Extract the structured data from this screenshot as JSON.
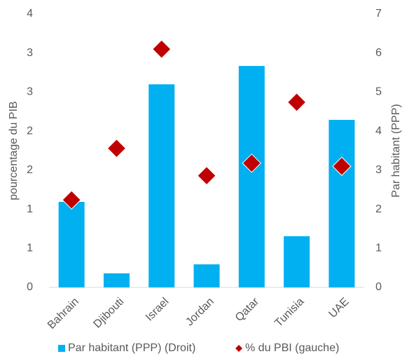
{
  "chart_data": {
    "type": "bar-scatter",
    "categories": [
      "Bahrain",
      "Djibouti",
      "Israel",
      "Jordan",
      "Qatar",
      "Tunisia",
      "UAE"
    ],
    "series": [
      {
        "name": "Par habitant (PPP) (Droit)",
        "type": "bar",
        "axis": "y2",
        "color": "#00b0f0",
        "values": [
          2.19,
          0.36,
          5.2,
          0.59,
          5.67,
          1.31,
          4.29
        ]
      },
      {
        "name": "% du PBI (gauche)",
        "type": "scatter",
        "axis": "y",
        "color": "#c00000",
        "values": [
          1.12,
          1.78,
          3.05,
          1.43,
          1.59,
          2.37,
          1.55
        ]
      }
    ],
    "ylabel": "pourcentage du PIB",
    "y2label": "Par habitant (PPP)",
    "ylim": [
      0,
      3.5
    ],
    "yticks": [
      0,
      {
        "value": 0.5,
        "label": "1"
      },
      1,
      {
        "value": 1.5,
        "label": "2"
      },
      2,
      {
        "value": 2.5,
        "label": "3"
      },
      3,
      {
        "value": 3.5,
        "label": "4"
      }
    ],
    "y2lim": [
      0,
      7
    ],
    "y2ticks": [
      0,
      1,
      2,
      3,
      4,
      5,
      6,
      7
    ],
    "grid": false,
    "legend": "bottom"
  }
}
